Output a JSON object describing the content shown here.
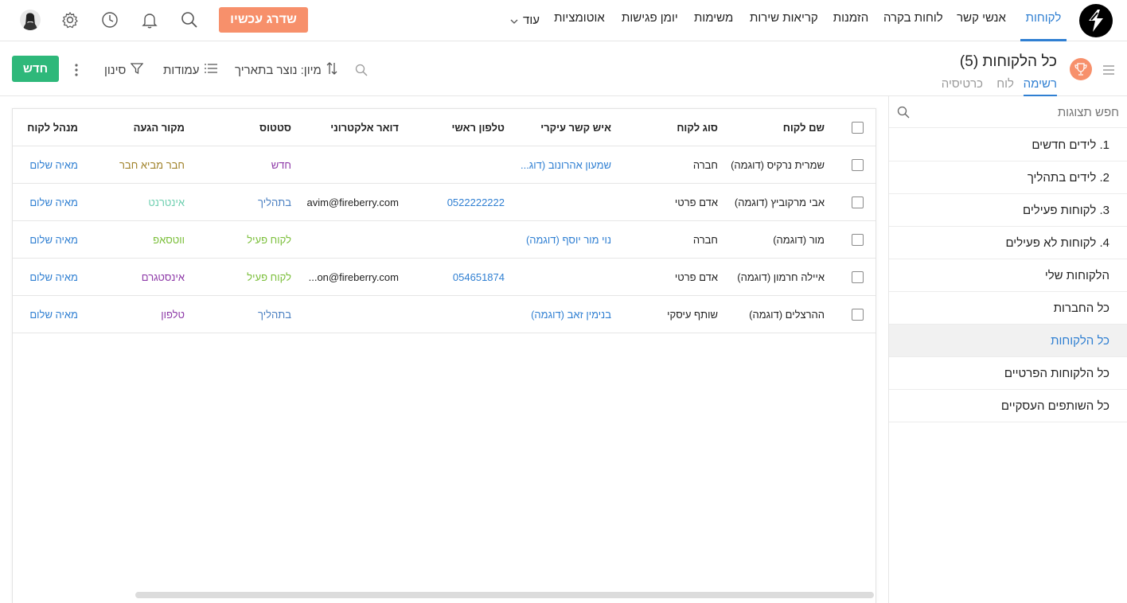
{
  "colors": {
    "accent": "#2f7fd2",
    "upgrade": "#f7906b",
    "new_button": "#2eb87a",
    "status_new": "#8e3aa8",
    "status_in_progress": "#4a7fc1",
    "status_active": "#7bbf3a",
    "source_friend": "#a0822a",
    "source_internet": "#6fcfb0",
    "source_whatsapp": "#7bbf3a",
    "source_instagram": "#8e3aa8",
    "source_phone": "#8e3aa8"
  },
  "topnav": {
    "logo_icon": "fireberry-logo-icon",
    "tabs": [
      "לקוחות",
      "אנשי קשר",
      "לוחות בקרה",
      "הזמנות",
      "קריאות שירות",
      "משימות",
      "יומן פגישות",
      "אוטומציות"
    ],
    "more_label": "עוד",
    "upgrade_label": "שדרג עכשיו",
    "icons": [
      "search-icon",
      "bell-icon",
      "clock-icon",
      "gear-icon",
      "avatar"
    ]
  },
  "subheader": {
    "title": "כל הלקוחות (5)",
    "views": [
      "רשימה",
      "לוח",
      "כרטיסיה"
    ],
    "sort_label": "מיון: נוצר בתאריך",
    "columns_label": "עמודות",
    "filter_label": "סינון",
    "new_label": "חדש"
  },
  "sidebar": {
    "search_placeholder": "חפש תצוגות",
    "items": [
      "1. לידים חדשים",
      "2. לידים בתהליך",
      "3. לקוחות פעילים",
      "4. לקוחות לא פעילים",
      "הלקוחות שלי",
      "כל החברות",
      "כל הלקוחות",
      "כל הלקוחות הפרטיים",
      "כל השותפים העסקיים"
    ],
    "active_index": 6
  },
  "table": {
    "headers": {
      "name": "שם לקוח",
      "type": "סוג לקוח",
      "contact": "איש קשר עיקרי",
      "phone": "טלפון ראשי",
      "email": "דואר אלקטרוני",
      "status": "סטטוס",
      "source": "מקור הגעה",
      "manager": "מנהל לקוח"
    },
    "rows": [
      {
        "name": "שמרית נרקיס (דוגמה)",
        "type": "חברה",
        "contact": "שמעון אהרונוב (דוג...",
        "phone": "",
        "email": "",
        "status": "חדש",
        "status_color": "#8e3aa8",
        "source": "חבר מביא חבר",
        "source_color": "#a0822a",
        "manager": "מאיה שלום"
      },
      {
        "name": "אבי מרקוביץ (דוגמה)",
        "type": "אדם פרטי",
        "contact": "",
        "phone": "0522222222",
        "email": "avim@fireberry.com",
        "status": "בתהליך",
        "status_color": "#4a7fc1",
        "source": "אינטרנט",
        "source_color": "#6fcfb0",
        "manager": "מאיה שלום"
      },
      {
        "name": "מור (דוגמה)",
        "type": "חברה",
        "contact": "נוי מור יוסף (דוגמה)",
        "phone": "",
        "email": "",
        "status": "לקוח פעיל",
        "status_color": "#7bbf3a",
        "source": "ווטסאפ",
        "source_color": "#7bbf3a",
        "manager": "מאיה שלום"
      },
      {
        "name": "איילה חרמון (דוגמה)",
        "type": "אדם פרטי",
        "contact": "",
        "phone": "054651874",
        "email": "...on@fireberry.com",
        "status": "לקוח פעיל",
        "status_color": "#7bbf3a",
        "source": "אינסטגרם",
        "source_color": "#8e3aa8",
        "manager": "מאיה שלום"
      },
      {
        "name": "ההרצלים (דוגמה)",
        "type": "שותף עיסקי",
        "contact": "בנימין זאב (דוגמה)",
        "phone": "",
        "email": "",
        "status": "בתהליך",
        "status_color": "#4a7fc1",
        "source": "טלפון",
        "source_color": "#8e3aa8",
        "manager": "מאיה שלום"
      }
    ]
  }
}
